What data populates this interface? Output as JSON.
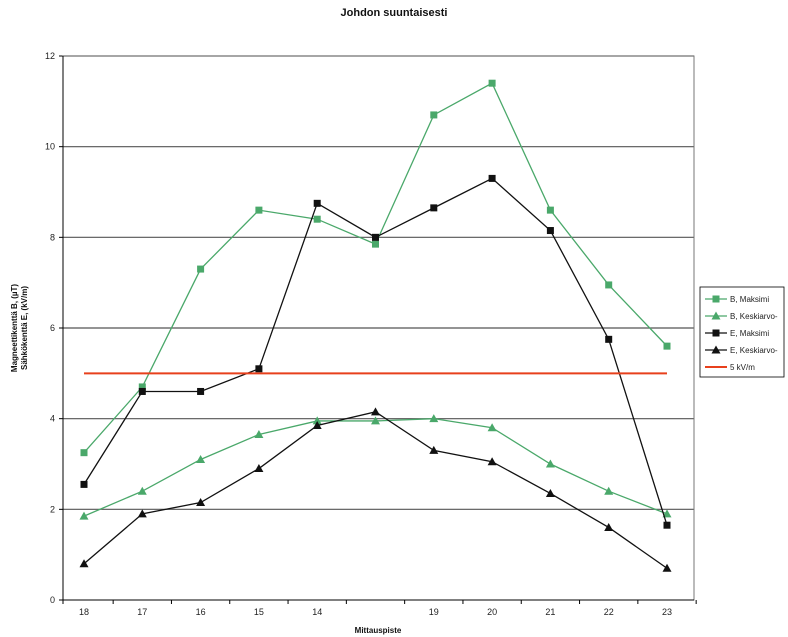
{
  "chart_data": {
    "type": "line",
    "title": "Johdon suuntaisesti",
    "xlabel": "Mittauspiste",
    "ylabel_lines": [
      "Magneettikenttä B, (µT)",
      "Sähkökenttä E, (kV/m)"
    ],
    "categories": [
      "18",
      "17",
      "16",
      "15",
      "14",
      "",
      "19",
      "20",
      "21",
      "22",
      "23"
    ],
    "ylim": [
      0,
      12
    ],
    "yticks": [
      0,
      2,
      4,
      6,
      8,
      10,
      12
    ],
    "grid": true,
    "legend_position": "right",
    "series": [
      {
        "name": "B, Maksimi",
        "color": "#4aa86a",
        "marker": "square",
        "values": [
          3.25,
          4.7,
          7.3,
          8.6,
          8.4,
          7.85,
          10.7,
          11.4,
          8.6,
          6.95,
          5.6
        ]
      },
      {
        "name": "B, Keskiarvo-",
        "color": "#4aa86a",
        "marker": "triangle",
        "values": [
          1.85,
          2.4,
          3.1,
          3.65,
          3.95,
          3.95,
          4.0,
          3.8,
          3.0,
          2.4,
          1.9
        ]
      },
      {
        "name": "E, Maksimi",
        "color": "#111111",
        "marker": "square",
        "values": [
          2.55,
          4.6,
          4.6,
          5.1,
          8.75,
          8.0,
          8.65,
          9.3,
          8.15,
          5.75,
          1.65
        ]
      },
      {
        "name": "E, Keskiarvo-",
        "color": "#111111",
        "marker": "triangle",
        "values": [
          0.8,
          1.9,
          2.15,
          2.9,
          3.85,
          4.15,
          3.3,
          3.05,
          2.35,
          1.6,
          0.7
        ]
      },
      {
        "name": "5 kV/m",
        "color": "#e8401c",
        "marker": "none",
        "values": [
          5,
          5,
          5,
          5,
          5,
          5,
          5,
          5,
          5,
          5,
          5
        ]
      }
    ]
  }
}
